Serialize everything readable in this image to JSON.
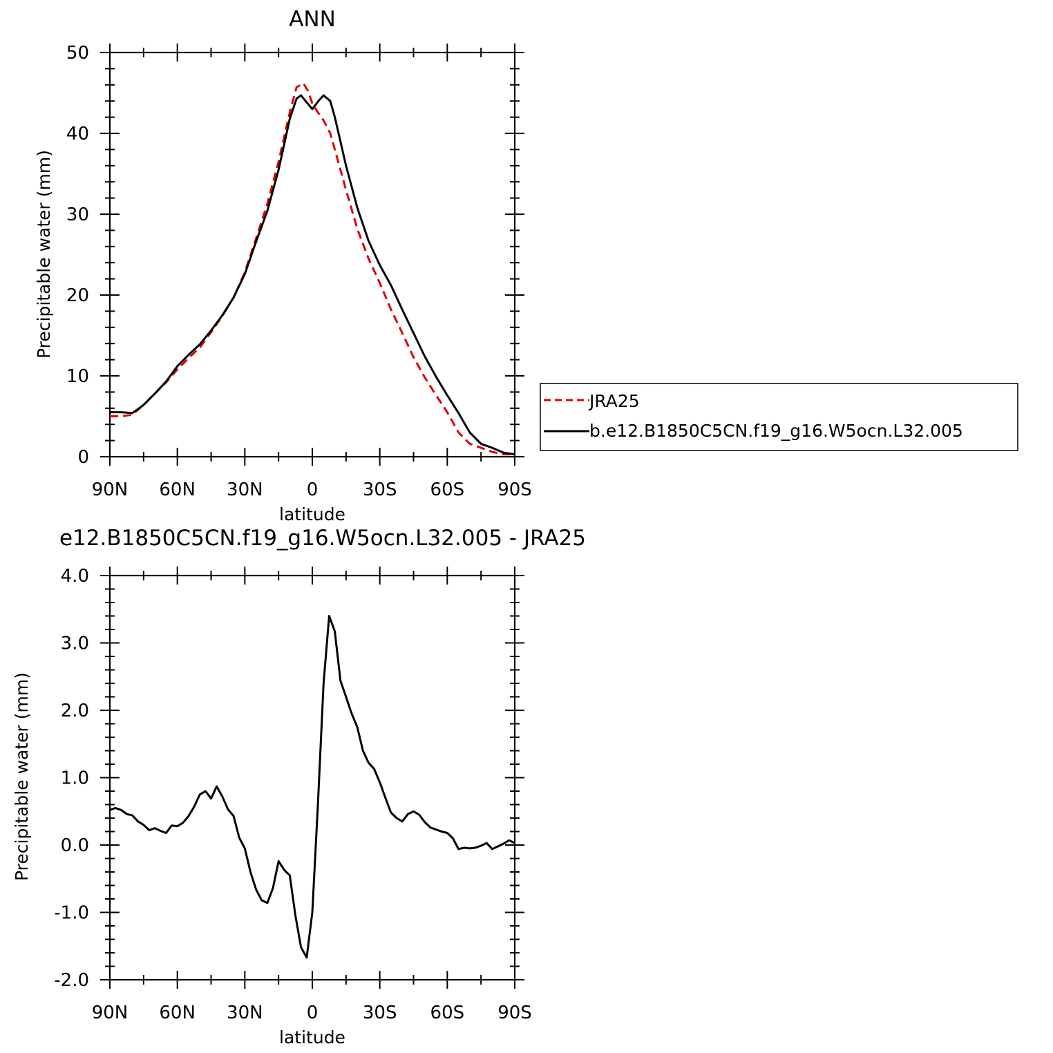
{
  "chart_data": [
    {
      "type": "line",
      "title": "ANN",
      "xlabel": "latitude",
      "ylabel": "Precipitable water (mm)",
      "xlim": [
        90,
        -90
      ],
      "ylim": [
        0,
        50
      ],
      "x_tick_values": [
        90,
        60,
        30,
        0,
        -30,
        -60,
        -90
      ],
      "x_tick_labels": [
        "90N",
        "60N",
        "30N",
        "0",
        "30S",
        "60S",
        "90S"
      ],
      "y_tick_values": [
        0,
        10,
        20,
        30,
        40,
        50
      ],
      "y_tick_labels": [
        "0",
        "10",
        "20",
        "30",
        "40",
        "50"
      ],
      "grid": false,
      "legend_position": "right",
      "series": [
        {
          "name": "JRA25",
          "color": "#e00000",
          "dash": "dashed",
          "x": [
            90,
            85,
            80,
            75,
            70,
            65,
            60,
            55,
            50,
            45,
            40,
            35,
            30,
            25,
            20,
            15,
            10,
            7,
            4,
            2,
            0,
            -2,
            -5,
            -8,
            -10,
            -15,
            -20,
            -25,
            -30,
            -35,
            -40,
            -45,
            -50,
            -55,
            -60,
            -65,
            -70,
            -75,
            -80,
            -85,
            -90
          ],
          "y": [
            5.0,
            5.0,
            5.2,
            6.4,
            7.8,
            9.2,
            10.8,
            12.2,
            13.5,
            15.4,
            17.4,
            19.7,
            22.8,
            27.0,
            31.3,
            36.5,
            42.6,
            45.7,
            46.2,
            45.3,
            43.7,
            42.8,
            41.6,
            40.0,
            38.0,
            33.0,
            28.2,
            24.5,
            21.5,
            18.2,
            15.3,
            12.3,
            9.8,
            7.6,
            5.5,
            3.0,
            1.6,
            1.1,
            0.6,
            0.3,
            0.3
          ]
        },
        {
          "name": "b.e12.B1850C5CN.f19_g16.W5ocn.L32.005",
          "color": "#000000",
          "dash": "solid",
          "x": [
            90,
            85,
            80,
            75,
            70,
            65,
            60,
            55,
            50,
            45,
            40,
            35,
            30,
            25,
            20,
            15,
            10,
            7,
            5,
            3,
            0,
            -3,
            -5,
            -8,
            -10,
            -15,
            -20,
            -25,
            -30,
            -35,
            -40,
            -45,
            -50,
            -55,
            -60,
            -65,
            -70,
            -75,
            -80,
            -85,
            -90
          ],
          "y": [
            5.5,
            5.5,
            5.4,
            6.4,
            7.8,
            9.3,
            11.2,
            12.6,
            13.9,
            15.6,
            17.5,
            19.7,
            22.6,
            26.6,
            30.4,
            35.5,
            41.8,
            44.3,
            44.7,
            44.0,
            43.0,
            44.1,
            44.7,
            44.0,
            42.0,
            36.0,
            30.8,
            26.7,
            23.7,
            21.2,
            18.2,
            15.3,
            12.4,
            9.9,
            7.6,
            5.4,
            3.0,
            1.6,
            1.1,
            0.5,
            0.3
          ]
        }
      ]
    },
    {
      "type": "line",
      "title": "e12.B1850C5CN.f19_g16.W5ocn.L32.005 - JRA25",
      "xlabel": "latitude",
      "ylabel": "Precipitable water (mm)",
      "xlim": [
        90,
        -90
      ],
      "ylim": [
        -2.0,
        4.0
      ],
      "x_tick_values": [
        90,
        60,
        30,
        0,
        -30,
        -60,
        -90
      ],
      "x_tick_labels": [
        "90N",
        "60N",
        "30N",
        "0",
        "30S",
        "60S",
        "90S"
      ],
      "y_tick_values": [
        -2.0,
        -1.0,
        0.0,
        1.0,
        2.0,
        3.0,
        4.0
      ],
      "y_tick_labels": [
        "-2.0",
        "-1.0",
        "0.0",
        "1.0",
        "2.0",
        "3.0",
        "4.0"
      ],
      "grid": false,
      "series": [
        {
          "color": "#000000",
          "dash": "solid",
          "x": [
            90,
            87.5,
            85,
            82.5,
            80,
            77.5,
            75,
            72.5,
            70,
            67.5,
            65,
            62.5,
            60,
            57.5,
            55,
            52.5,
            50,
            47.5,
            45,
            42.5,
            40,
            37.5,
            35,
            32.5,
            30,
            27.5,
            25,
            22.5,
            20,
            17.5,
            15,
            12.5,
            10,
            7.5,
            5,
            2.5,
            0,
            -2.5,
            -5,
            -7.5,
            -10,
            -12.5,
            -15,
            -17.5,
            -20,
            -22.5,
            -25,
            -27.5,
            -30,
            -32.5,
            -35,
            -37.5,
            -40,
            -42.5,
            -45,
            -47.5,
            -50,
            -52.5,
            -55,
            -57.5,
            -60,
            -62.5,
            -65,
            -67.5,
            -70,
            -72.5,
            -75,
            -77.5,
            -80,
            -82.5,
            -85,
            -87.5,
            -90
          ],
          "y": [
            0.52,
            0.55,
            0.52,
            0.46,
            0.44,
            0.35,
            0.3,
            0.22,
            0.25,
            0.21,
            0.18,
            0.29,
            0.28,
            0.33,
            0.43,
            0.57,
            0.75,
            0.8,
            0.69,
            0.87,
            0.72,
            0.53,
            0.43,
            0.11,
            -0.05,
            -0.4,
            -0.66,
            -0.82,
            -0.86,
            -0.64,
            -0.24,
            -0.37,
            -0.45,
            -1.05,
            -1.52,
            -1.67,
            -1.0,
            0.6,
            2.4,
            3.4,
            3.17,
            2.44,
            2.2,
            1.95,
            1.75,
            1.4,
            1.22,
            1.13,
            0.93,
            0.7,
            0.48,
            0.4,
            0.35,
            0.46,
            0.5,
            0.45,
            0.34,
            0.26,
            0.23,
            0.2,
            0.18,
            0.1,
            -0.06,
            -0.04,
            -0.05,
            -0.04,
            -0.01,
            0.03,
            -0.06,
            -0.02,
            0.02,
            0.07,
            0.03
          ]
        }
      ]
    }
  ]
}
